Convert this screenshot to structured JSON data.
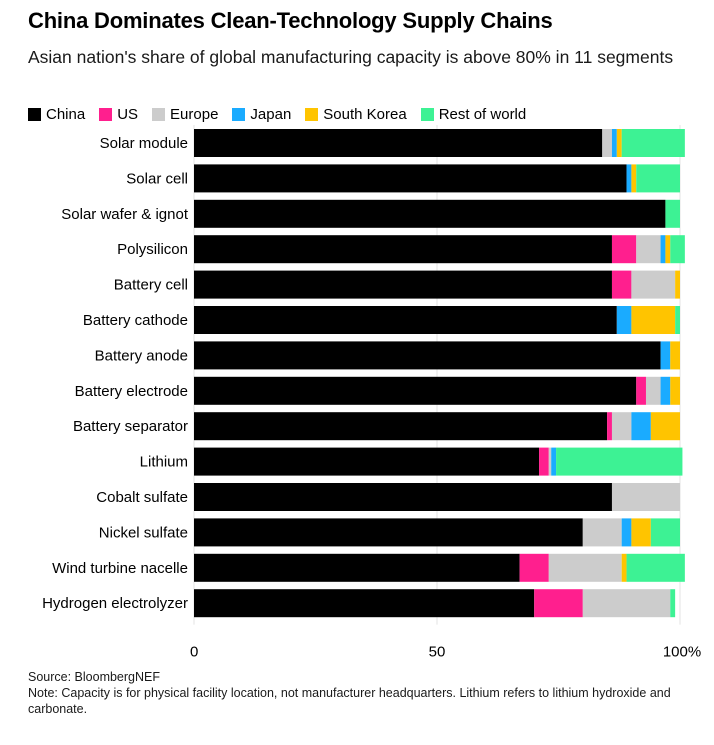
{
  "chart_data": {
    "type": "bar",
    "orientation": "horizontal",
    "stacked": true,
    "title": "China Dominates Clean-Technology Supply Chains",
    "subtitle": "Asian nation's share of global manufacturing capacity is above 80% in 11 segments",
    "categories": [
      "Solar module",
      "Solar cell",
      "Solar wafer & ignot",
      "Polysilicon",
      "Battery cell",
      "Battery cathode",
      "Battery anode",
      "Battery electrode",
      "Battery separator",
      "Lithium",
      "Cobalt sulfate",
      "Nickel sulfate",
      "Wind turbine nacelle",
      "Hydrogen electrolyzer"
    ],
    "series": [
      {
        "name": "China",
        "color": "#000000",
        "values": [
          84,
          89,
          97,
          86,
          86,
          87,
          96,
          91,
          85,
          71,
          86,
          80,
          67,
          70
        ]
      },
      {
        "name": "US",
        "color": "#ff1f8e",
        "values": [
          0,
          0,
          0,
          5,
          4,
          0,
          0,
          2,
          1,
          2,
          0,
          0,
          6,
          10
        ]
      },
      {
        "name": "Europe",
        "color": "#cccccc",
        "values": [
          2,
          0,
          0,
          5,
          9,
          0,
          0,
          3,
          4,
          0.5,
          14,
          8,
          15,
          18
        ]
      },
      {
        "name": "Japan",
        "color": "#1aabff",
        "values": [
          1,
          1,
          0,
          1,
          0,
          3,
          2,
          2,
          4,
          1,
          0,
          2,
          0,
          0
        ]
      },
      {
        "name": "South Korea",
        "color": "#ffc400",
        "values": [
          1,
          1,
          0,
          1,
          1,
          9,
          2,
          2,
          6,
          0,
          0,
          4,
          1,
          0
        ]
      },
      {
        "name": "Rest of world",
        "color": "#3df294",
        "values": [
          13,
          9,
          3,
          3,
          0,
          1,
          0,
          0,
          0,
          26,
          0,
          6,
          12,
          1
        ]
      }
    ],
    "x_axis": {
      "range": [
        0,
        100
      ],
      "ticks": [
        0,
        50,
        100
      ],
      "tick_labels": [
        "0",
        "50",
        "100%"
      ]
    },
    "grid": true,
    "legend_placement": "top-left"
  },
  "footer": {
    "source": "Source: BloombergNEF",
    "note": "Note: Capacity is for physical facility location, not manufacturer headquarters. Lithium refers to lithium hydroxide and carbonate."
  }
}
